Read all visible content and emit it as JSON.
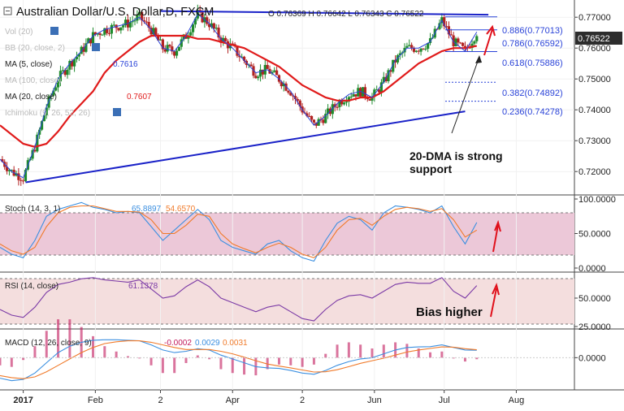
{
  "header": {
    "title": "Australian Dollar/U.S. Dollar,D, FXCM",
    "ohlc": "O 0.76369 H 0.76642 L 0.76343 C 0.76522"
  },
  "indicators": {
    "vol": {
      "label": "Vol (20)"
    },
    "bb": {
      "label": "BB (20, close, 2)"
    },
    "ma5": {
      "label": "MA (5, close)",
      "value": "0.7616"
    },
    "ma100": {
      "label": "MA (100, close)"
    },
    "ma20": {
      "label": "MA (20, close)",
      "value": "0.7607"
    },
    "ichimoku": {
      "label": "Ichimoku (9, 26, 52, 26)"
    }
  },
  "fibonacci": [
    {
      "label": "0.886(0.77013)",
      "value": 0.77013
    },
    {
      "label": "0.786(0.76592)",
      "value": 0.76592
    },
    {
      "label": "0.618(0.75886)",
      "value": 0.75886
    },
    {
      "label": "0.382(0.74892)",
      "value": 0.74892
    },
    {
      "label": "0.236(0.74278)",
      "value": 0.74278
    }
  ],
  "annotations": {
    "support_line1": "20-DMA is strong",
    "support_line2": "support",
    "bias": "Bias higher"
  },
  "price_axis": {
    "ticks": [
      "0.77000",
      "0.76000",
      "0.75000",
      "0.74000",
      "0.73000",
      "0.72000"
    ],
    "current_price": "0.76522"
  },
  "stoch": {
    "label": "Stoch (14, 3, 1)",
    "k_value": "65.8897",
    "d_value": "54.6570",
    "ticks": [
      "100.0000",
      "50.0000",
      "0.0000"
    ]
  },
  "rsi": {
    "label": "RSI (14, close)",
    "value": "61.1378",
    "ticks": [
      "50.0000",
      "25.0000"
    ]
  },
  "macd": {
    "label": "MACD (12, 26, close, 9)",
    "hist": "-0.0002",
    "macd_value": "0.0029",
    "signal_value": "0.0031",
    "ticks": [
      "0.0000"
    ]
  },
  "time_axis": {
    "ticks": [
      "2017",
      "Feb",
      "2",
      "Apr",
      "2",
      "Jun",
      "Jul",
      "Aug"
    ]
  },
  "colors": {
    "candle_up": "#1f8b2e",
    "candle_down": "#b22222",
    "ma20": "#e01b1b",
    "ma5": "#2a43d8",
    "trendline": "#1a22c8",
    "fib": "#2a43d8",
    "stoch_k": "#3b8fe0",
    "stoch_d": "#f07a2a",
    "rsi": "#7b3aa6",
    "macd_line": "#3b8fe0",
    "signal_line": "#f07a2a",
    "arrow": "#e0101b",
    "stoch_band": "#ecc8d8",
    "rsi_band": "#f4dede"
  },
  "chart_data": {
    "type": "line",
    "title": "Australian Dollar/U.S. Dollar,D, FXCM",
    "x": [
      "2016-12-22",
      "2016-12-27",
      "2017-01-01",
      "2017-01-06",
      "2017-01-11",
      "2017-01-16",
      "2017-01-21",
      "2017-01-26",
      "2017-01-31",
      "2017-02-05",
      "2017-02-10",
      "2017-02-15",
      "2017-02-20",
      "2017-02-25",
      "2017-03-02",
      "2017-03-07",
      "2017-03-12",
      "2017-03-17",
      "2017-03-22",
      "2017-03-27",
      "2017-04-01",
      "2017-04-06",
      "2017-04-11",
      "2017-04-16",
      "2017-04-21",
      "2017-04-26",
      "2017-05-01",
      "2017-05-06",
      "2017-05-11",
      "2017-05-16",
      "2017-05-21",
      "2017-05-26",
      "2017-05-31",
      "2017-06-05",
      "2017-06-10",
      "2017-06-15",
      "2017-06-20",
      "2017-06-25",
      "2017-06-30",
      "2017-07-05",
      "2017-07-10",
      "2017-07-15"
    ],
    "series": [
      {
        "name": "",
        "values": [
          0.724,
          0.72,
          0.718,
          0.728,
          0.741,
          0.75,
          0.755,
          0.759,
          0.764,
          0.766,
          0.767,
          0.768,
          0.77,
          0.766,
          0.76,
          0.759,
          0.764,
          0.771,
          0.768,
          0.763,
          0.76,
          0.756,
          0.752,
          0.753,
          0.75,
          0.746,
          0.74,
          0.735,
          0.738,
          0.742,
          0.745,
          0.746,
          0.744,
          0.749,
          0.756,
          0.76,
          0.76,
          0.762,
          0.769,
          0.762,
          0.759,
          0.7652
        ]
      },
      {
        "name": "MA (20, close)",
        "values": [
          0.735,
          0.732,
          0.729,
          0.728,
          0.729,
          0.733,
          0.738,
          0.742,
          0.746,
          0.752,
          0.756,
          0.759,
          0.762,
          0.764,
          0.764,
          0.764,
          0.764,
          0.763,
          0.763,
          0.762,
          0.761,
          0.76,
          0.758,
          0.756,
          0.754,
          0.751,
          0.748,
          0.746,
          0.744,
          0.743,
          0.743,
          0.744,
          0.744,
          0.746,
          0.749,
          0.752,
          0.755,
          0.757,
          0.759,
          0.76,
          0.76,
          0.7607
        ]
      }
    ],
    "ylim": [
      0.714,
      0.774
    ],
    "fib_levels": [
      0.77013,
      0.76592,
      0.75886,
      0.74892,
      0.74278
    ],
    "trendlines": [
      {
        "name": "resistance",
        "from": [
          "2017-03-01",
          0.772
        ],
        "to": [
          "2017-07-20",
          0.7708
        ]
      },
      {
        "name": "support",
        "from": [
          "2017-01-02",
          0.7165
        ],
        "to": [
          "2017-07-10",
          0.7395
        ]
      }
    ],
    "stoch_k": [
      30,
      20,
      15,
      40,
      75,
      85,
      90,
      95,
      88,
      85,
      80,
      82,
      80,
      60,
      40,
      55,
      70,
      85,
      70,
      40,
      30,
      25,
      20,
      35,
      40,
      25,
      15,
      10,
      40,
      65,
      75,
      70,
      55,
      80,
      90,
      88,
      85,
      80,
      90,
      60,
      35,
      66
    ],
    "stoch_d": [
      35,
      25,
      20,
      30,
      60,
      80,
      88,
      90,
      90,
      86,
      82,
      82,
      81,
      70,
      50,
      50,
      62,
      78,
      75,
      50,
      35,
      28,
      22,
      30,
      36,
      30,
      20,
      15,
      30,
      55,
      70,
      72,
      62,
      75,
      85,
      88,
      86,
      82,
      86,
      70,
      45,
      55
    ],
    "rsi": [
      40,
      35,
      33,
      42,
      55,
      62,
      64,
      67,
      68,
      66,
      65,
      64,
      66,
      58,
      50,
      52,
      60,
      66,
      60,
      50,
      46,
      42,
      38,
      42,
      44,
      38,
      32,
      30,
      40,
      48,
      52,
      53,
      50,
      56,
      62,
      64,
      63,
      63,
      68,
      56,
      50,
      61
    ],
    "macd": [
      -0.008,
      -0.009,
      -0.0085,
      -0.006,
      -0.002,
      0.002,
      0.0045,
      0.006,
      0.0068,
      0.007,
      0.007,
      0.0068,
      0.0066,
      0.005,
      0.003,
      0.002,
      0.0025,
      0.0035,
      0.003,
      0.001,
      -0.0005,
      -0.002,
      -0.0035,
      -0.004,
      -0.0042,
      -0.005,
      -0.006,
      -0.0065,
      -0.005,
      -0.003,
      -0.0015,
      -0.0005,
      0.0,
      0.0015,
      0.003,
      0.004,
      0.0042,
      0.0043,
      0.005,
      0.004,
      0.003,
      0.0029
    ],
    "signal": [
      -0.007,
      -0.0078,
      -0.0082,
      -0.0075,
      -0.0055,
      -0.003,
      -0.0005,
      0.002,
      0.004,
      0.0055,
      0.0062,
      0.0066,
      0.0066,
      0.006,
      0.005,
      0.004,
      0.0032,
      0.0032,
      0.0032,
      0.0025,
      0.0015,
      0.0002,
      -0.0012,
      -0.0025,
      -0.0033,
      -0.004,
      -0.0048,
      -0.0056,
      -0.0055,
      -0.0047,
      -0.0035,
      -0.0022,
      -0.0012,
      -0.0002,
      0.001,
      0.0022,
      0.003,
      0.0036,
      0.0042,
      0.0041,
      0.0035,
      0.0031
    ],
    "macd_ylim": [
      -0.011,
      0.009
    ]
  }
}
